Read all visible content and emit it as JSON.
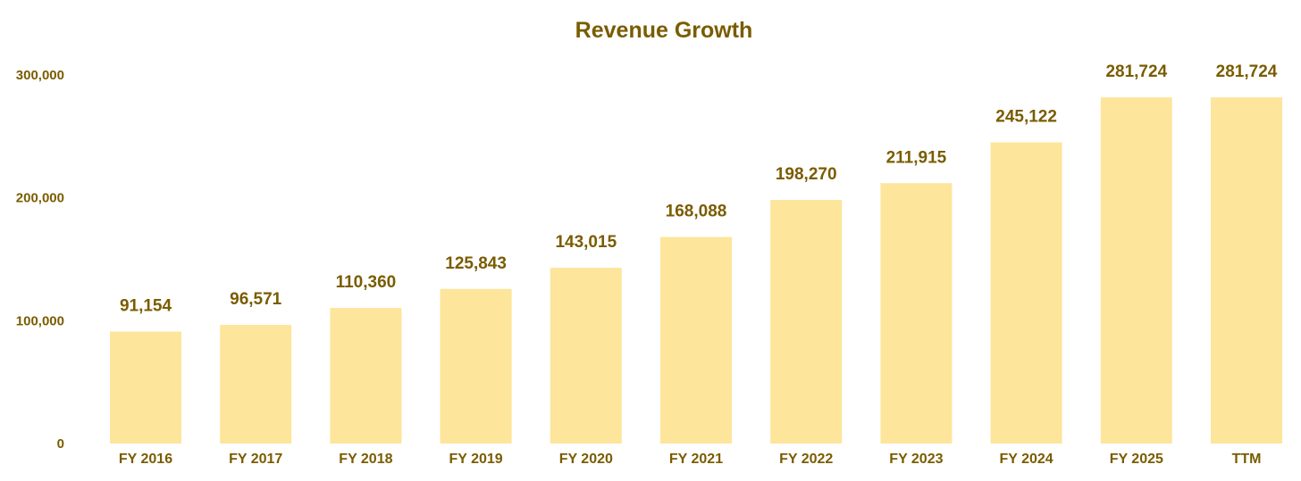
{
  "colors": {
    "bar": "#FDE59B",
    "text": "#7A5C00",
    "background": "#FFFFFF"
  },
  "chart_data": {
    "type": "bar",
    "title": "Revenue Growth",
    "xlabel": "",
    "ylabel": "",
    "categories": [
      "FY 2016",
      "FY 2017",
      "FY 2018",
      "FY 2019",
      "FY 2020",
      "FY 2021",
      "FY 2022",
      "FY 2023",
      "FY 2024",
      "FY 2025",
      "TTM"
    ],
    "values": [
      91154,
      96571,
      110360,
      125843,
      143015,
      168088,
      198270,
      211915,
      245122,
      281724,
      281724
    ],
    "data_labels": [
      "91,154",
      "96,571",
      "110,360",
      "125,843",
      "143,015",
      "168,088",
      "198,270",
      "211,915",
      "245,122",
      "281,724",
      "281,724"
    ],
    "ylim": [
      0,
      300000
    ],
    "yticks": [
      0,
      100000,
      200000,
      300000
    ],
    "ytick_labels": [
      "0",
      "100,000",
      "200,000",
      "300,000"
    ],
    "grid": false,
    "legend": "none"
  }
}
